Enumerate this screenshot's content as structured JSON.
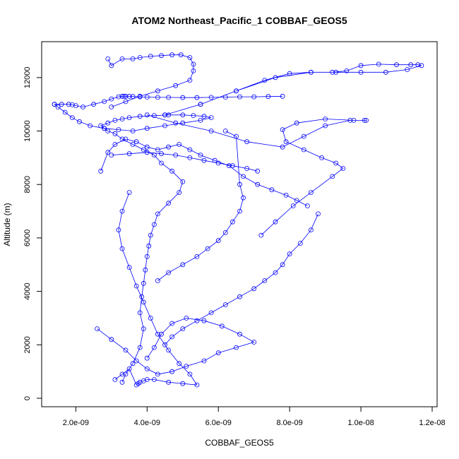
{
  "chart_data": {
    "type": "line",
    "title": "ATOM2 Northeast_Pacific_1 COBBAF_GEOS5",
    "xlabel": "COBBAF_GEOS5",
    "ylabel": "Altitude (m)",
    "xlim": [
      1.2e-09,
      1.2e-08
    ],
    "ylim": [
      0,
      13000
    ],
    "x_ticks": [
      2e-09,
      4e-09,
      6e-09,
      8e-09,
      1e-08,
      1.2e-08
    ],
    "x_tick_labels": [
      "2.0e-09",
      "4.0e-09",
      "6.0e-09",
      "8.0e-09",
      "1.0e-08",
      "1.2e-08"
    ],
    "y_ticks": [
      0,
      2000,
      4000,
      6000,
      8000,
      10000,
      12000
    ],
    "y_tick_labels": [
      "0",
      "2000",
      "4000",
      "6000",
      "8000",
      "10000",
      "12000"
    ],
    "grid": false,
    "marker": "open-circle",
    "color": "#0000ff",
    "series": [
      {
        "x": [
          3.3e-09,
          3.4e-09,
          3.6e-09,
          3.8e-09,
          3.9e-09,
          3.8e-09,
          3.85e-09,
          3.9e-09,
          3.95e-09,
          4e-09,
          4.05e-09,
          4.1e-09,
          4.2e-09,
          4.3e-09,
          4.6e-09,
          4.9e-09,
          5e-09,
          4.7e-09,
          4.4e-09,
          4.2e-09,
          3.9e-09,
          3.6e-09,
          3.3e-09,
          3.1e-09,
          2.9e-09,
          2.8e-09,
          2.7e-09,
          2.9e-09,
          3.1e-09,
          3.3e-09,
          3.5e-09,
          3.8e-09,
          4.2e-09,
          4.6e-09,
          5e-09,
          5.3e-09,
          5.6e-09,
          5.8e-09,
          5.5e-09,
          5e-09,
          4.5e-09,
          4e-09,
          3.6e-09,
          3.2e-09,
          2.8e-09,
          2.4e-09,
          2.1e-09,
          1.9e-09,
          1.7e-09,
          1.5e-09,
          1.4e-09
        ],
        "y": [
          600,
          900,
          1300,
          1900,
          2600,
          3200,
          3800,
          4300,
          4800,
          5300,
          5700,
          6100,
          6500,
          6900,
          7300,
          7700,
          8100,
          8500,
          8800,
          9100,
          9300,
          9500,
          9700,
          9900,
          10000,
          10100,
          10200,
          10300,
          10400,
          10450,
          10500,
          10550,
          10580,
          10600,
          10600,
          10580,
          10550,
          10500,
          10400,
          10300,
          10200,
          10100,
          10000,
          10050,
          10100,
          10200,
          10350,
          10500,
          10700,
          10900,
          11000
        ]
      },
      {
        "x": [
          1.4e-09,
          1.6e-09,
          1.8e-09,
          1.9e-09,
          2e-09,
          2.2e-09,
          2.5e-09,
          2.8e-09,
          3e-09,
          3.2e-09,
          3.3e-09,
          3.35e-09,
          3.4e-09,
          3.5e-09,
          3.6e-09,
          3.8e-09,
          4e-09,
          4.3e-09,
          4.6e-09,
          5e-09,
          5.4e-09,
          5.8e-09,
          6.2e-09,
          6.6e-09,
          7e-09,
          7.4e-09,
          7.8e-09
        ],
        "y": [
          11000,
          11000,
          11000,
          10980,
          10950,
          10900,
          11000,
          11100,
          11200,
          11280,
          11300,
          11300,
          11300,
          11300,
          11290,
          11280,
          11270,
          11260,
          11260,
          11250,
          11250,
          11260,
          11270,
          11280,
          11280,
          11290,
          11300
        ]
      },
      {
        "x": [
          2.9e-09,
          3e-09,
          3.3e-09,
          3.6e-09,
          3.8e-09,
          4.1e-09,
          4.4e-09,
          4.7e-09,
          4.95e-09,
          5.2e-09,
          5.3e-09,
          5.3e-09,
          5.2e-09,
          4.8e-09,
          4.3e-09,
          3.8e-09,
          3.4e-09,
          3e-09
        ],
        "y": [
          12700,
          12450,
          12700,
          12700,
          12750,
          12800,
          12820,
          12850,
          12850,
          12750,
          12500,
          12250,
          11900,
          11700,
          11500,
          11300,
          11100,
          10900
        ]
      },
      {
        "x": [
          4.5e-09,
          5.5e-09,
          6.5e-09,
          7.3e-09,
          8e-09,
          8.6e-09,
          9.2e-09,
          9.6e-09,
          1e-08,
          1.05e-08,
          1.1e-08,
          1.14e-08,
          1.16e-08,
          1.17e-08,
          1.13e-08,
          1.07e-08,
          1e-08,
          9.3e-09,
          8.6e-09,
          7.6e-09,
          6.5e-09,
          5.5e-09,
          4.5e-09
        ],
        "y": [
          10600,
          11000,
          11500,
          11900,
          12150,
          12200,
          12200,
          12250,
          12450,
          12500,
          12480,
          12480,
          12480,
          12450,
          12300,
          12200,
          12200,
          12200,
          12200,
          12000,
          11500,
          11000,
          10600
        ]
      },
      {
        "x": [
          4e-09,
          4.8e-09,
          5.8e-09,
          6.8e-09,
          7.8e-09,
          8.4e-09,
          9e-09,
          9.7e-09,
          1.01e-08,
          1.015e-08,
          9.8e-09,
          9e-09,
          8.2e-09,
          7.8e-09,
          7.9e-09,
          8.4e-09,
          8.9e-09,
          9.3e-09,
          9.5e-09,
          9.2e-09,
          8.6e-09,
          8.1e-09,
          7.6e-09,
          7.2e-09
        ],
        "y": [
          10600,
          10300,
          10000,
          9600,
          9400,
          9800,
          10200,
          10400,
          10400,
          10400,
          10400,
          10450,
          10300,
          10050,
          9600,
          9300,
          9000,
          8800,
          8600,
          8300,
          7700,
          7200,
          6600,
          6100
        ]
      },
      {
        "x": [
          8.8e-09,
          8.6e-09,
          8.3e-09,
          8e-09,
          7.8e-09,
          7.6e-09,
          7.3e-09,
          7e-09,
          6.6e-09,
          6.2e-09,
          5.8e-09,
          5.4e-09,
          5e-09,
          4.7e-09,
          4.5e-09
        ],
        "y": [
          6900,
          6300,
          5800,
          5400,
          5000,
          4700,
          4400,
          4100,
          3800,
          3500,
          3200,
          2900,
          2600,
          2300,
          2000
        ]
      },
      {
        "x": [
          2.6e-09,
          3e-09,
          3.4e-09,
          3.7e-09,
          4e-09,
          4.3e-09,
          4.7e-09,
          5.1e-09,
          5.6e-09,
          6e-09,
          6.5e-09,
          7e-09,
          6.6e-09,
          6.1e-09,
          5.6e-09,
          5.1e-09,
          4.7e-09,
          4.4e-09,
          4.2e-09,
          4e-09
        ],
        "y": [
          2600,
          2200,
          1800,
          1400,
          1100,
          900,
          1000,
          1200,
          1400,
          1700,
          1900,
          2100,
          2400,
          2700,
          2900,
          3000,
          2800,
          2400,
          1900,
          1500
        ]
      },
      {
        "x": [
          3.1e-09,
          3.3e-09,
          3.5e-09,
          3.7e-09,
          3.75e-09,
          3.8e-09,
          3.9e-09,
          4e-09,
          4.2e-09,
          4.6e-09,
          5e-09,
          5.4e-09,
          5.2e-09,
          4.9e-09,
          4.6e-09,
          4.3e-09,
          4.1e-09,
          3.9e-09,
          3.7e-09,
          3.5e-09,
          3.3e-09,
          3.2e-09,
          3.3e-09,
          3.5e-09
        ],
        "y": [
          700,
          900,
          1100,
          500,
          550,
          600,
          650,
          700,
          700,
          600,
          550,
          500,
          900,
          1300,
          1800,
          2400,
          3000,
          3600,
          4200,
          4900,
          5600,
          6300,
          7000,
          7700
        ]
      },
      {
        "x": [
          6.2e-09,
          6.5e-09,
          6.6e-09,
          6.7e-09,
          6.6e-09,
          6.4e-09,
          6.2e-09,
          6e-09,
          5.7e-09,
          5.4e-09,
          5e-09,
          4.6e-09,
          4.3e-09
        ],
        "y": [
          10000,
          9800,
          8000,
          7500,
          7000,
          6600,
          6200,
          5900,
          5600,
          5300,
          5000,
          4700,
          4400
        ]
      },
      {
        "x": [
          2.7e-09,
          2.9e-09,
          3.1e-09,
          3.4e-09,
          3.7e-09,
          4e-09,
          4.3e-09,
          4.6e-09,
          4.9e-09,
          5.2e-09,
          5.5e-09,
          5.9e-09,
          6.3e-09,
          6.7e-09,
          7.1e-09,
          7.5e-09,
          7.9e-09,
          8.2e-09,
          8.5e-09
        ],
        "y": [
          8500,
          9200,
          9500,
          9700,
          9600,
          9400,
          9300,
          9400,
          9500,
          9300,
          9100,
          8900,
          8700,
          8300,
          8000,
          7800,
          7600,
          7400,
          7200
        ]
      },
      {
        "x": [
          3e-09,
          3.5e-09,
          4e-09,
          4.4e-09,
          4.8e-09,
          5.2e-09,
          5.6e-09,
          6e-09,
          6.4e-09,
          6.8e-09,
          7.1e-09
        ],
        "y": [
          9100,
          9150,
          9200,
          9150,
          9100,
          9000,
          8900,
          8800,
          8700,
          8600,
          8500
        ]
      }
    ]
  }
}
